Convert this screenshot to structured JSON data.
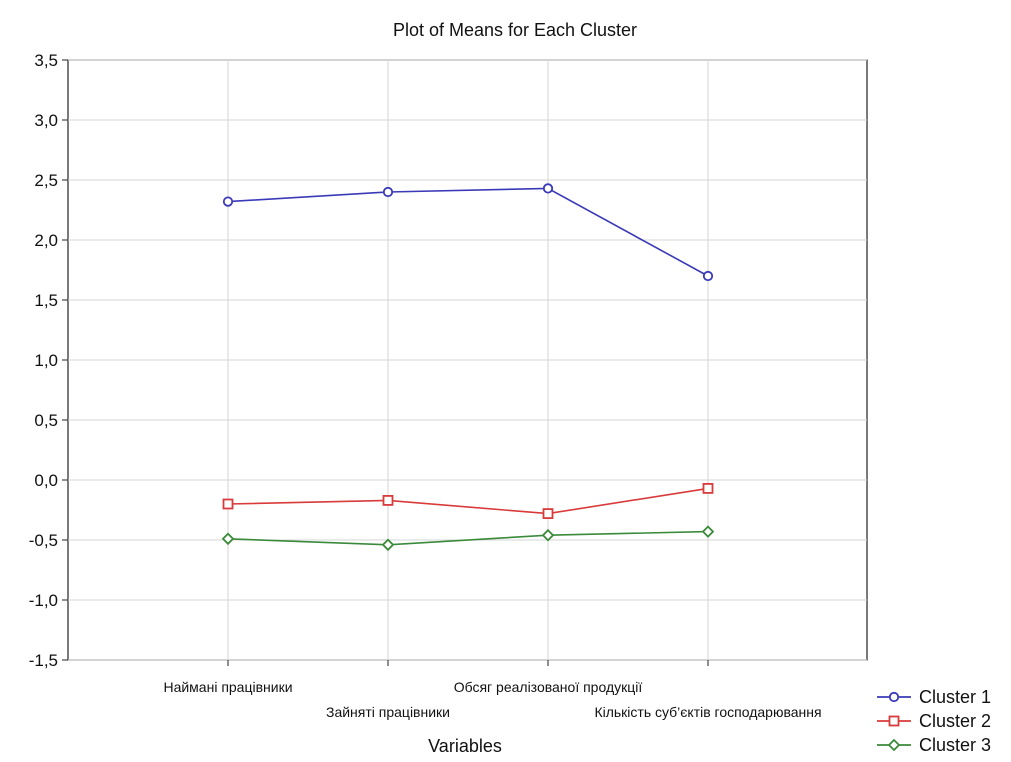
{
  "chart_data": {
    "type": "line",
    "title": "Plot of Means for Each Cluster",
    "xlabel": "Variables",
    "ylabel": "",
    "categories": [
      "Наймані працівники",
      "Зайняті працівники",
      "Обсяг реалізованої продукції",
      "Кількість суб’єктів господарювання"
    ],
    "ylim": [
      -1.5,
      3.5
    ],
    "yticks": [
      "-1,5",
      "-1,0",
      "-0,5",
      "0,0",
      "0,5",
      "1,0",
      "1,5",
      "2,0",
      "2,5",
      "3,0",
      "3,5"
    ],
    "ytick_values": [
      -1.5,
      -1.0,
      -0.5,
      0.0,
      0.5,
      1.0,
      1.5,
      2.0,
      2.5,
      3.0,
      3.5
    ],
    "grid": true,
    "legend_position": "bottom-right",
    "series": [
      {
        "name": "Cluster  1",
        "color": "#3a3ab8",
        "marker": "circle",
        "values": [
          2.32,
          2.4,
          2.43,
          1.7
        ]
      },
      {
        "name": "Cluster  2",
        "color": "#d93a3a",
        "marker": "square",
        "values": [
          -0.2,
          -0.17,
          -0.28,
          -0.07
        ]
      },
      {
        "name": "Cluster  3",
        "color": "#3a8a3a",
        "marker": "diamond",
        "values": [
          -0.49,
          -0.54,
          -0.46,
          -0.43
        ]
      }
    ]
  }
}
